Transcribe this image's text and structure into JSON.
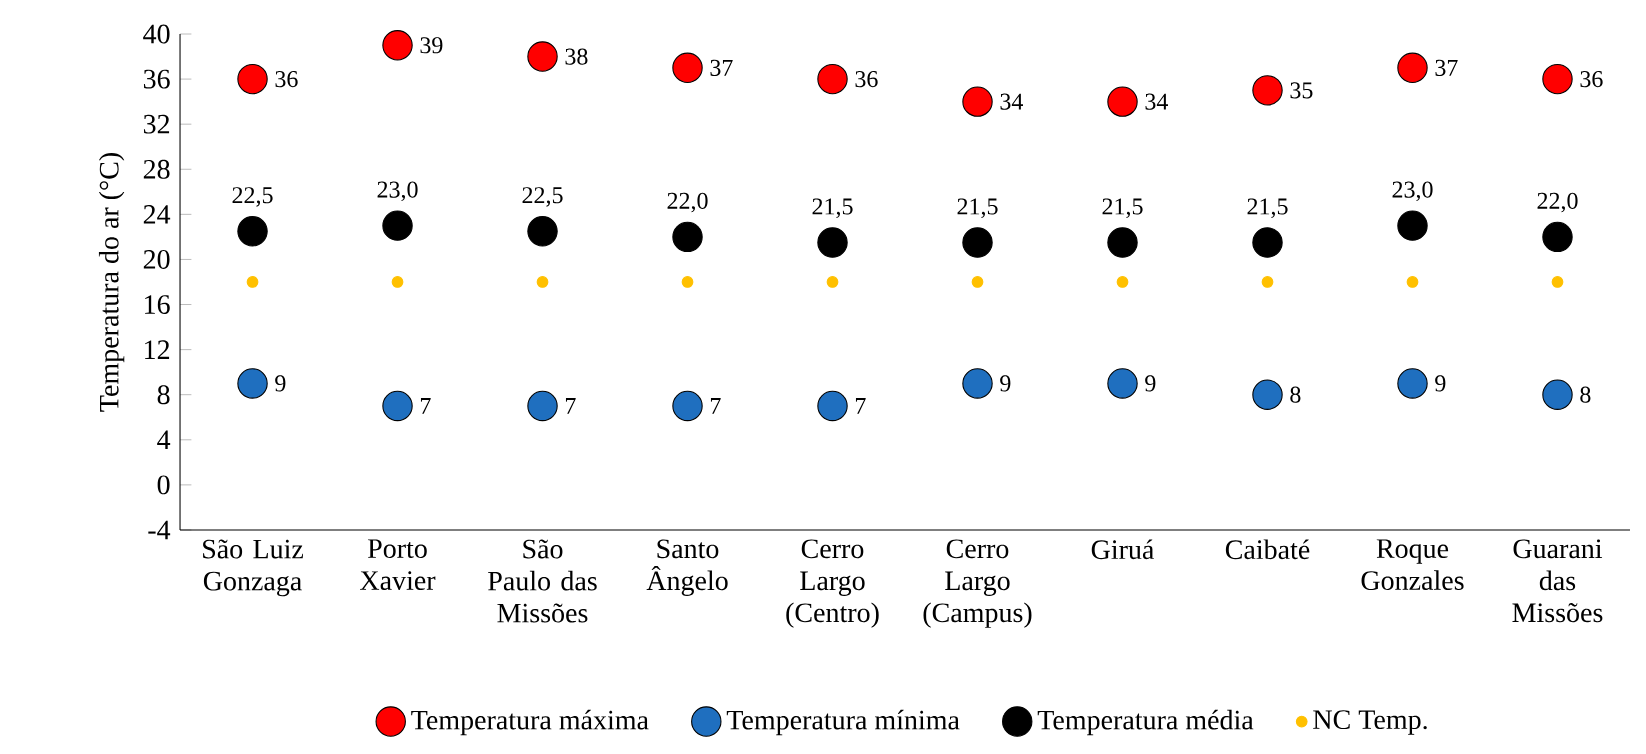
{
  "chart_data": {
    "type": "scatter",
    "ylabel": "Temperatura do ar (°C)",
    "categories": [
      "São Luiz Gonzaga",
      "Porto Xavier",
      "São Paulo das Missões",
      "Santo Ângelo",
      "Cerro Largo (Centro)",
      "Cerro Largo (Campus)",
      "Giruá",
      "Caibaté",
      "Roque Gonzales",
      "Guarani das Missões"
    ],
    "series": [
      {
        "name": "Temperatura máxima",
        "color": "#ff0000",
        "values": [
          36,
          39,
          38,
          37,
          36,
          34,
          34,
          35,
          37,
          36
        ],
        "value_labels": [
          "36",
          "39",
          "38",
          "37",
          "36",
          "34",
          "34",
          "35",
          "37",
          "36"
        ]
      },
      {
        "name": "Temperatura mínima",
        "color": "#1f6fbf",
        "values": [
          9,
          7,
          7,
          7,
          7,
          9,
          9,
          8,
          9,
          8
        ],
        "value_labels": [
          "9",
          "7",
          "7",
          "7",
          "7",
          "9",
          "9",
          "8",
          "9",
          "8"
        ]
      },
      {
        "name": "Temperatura média",
        "color": "#000000",
        "values": [
          22.5,
          23.0,
          22.5,
          22.0,
          21.5,
          21.5,
          21.5,
          21.5,
          23.0,
          22.0
        ],
        "value_labels": [
          "22,5",
          "23,0",
          "22,5",
          "22,0",
          "21,5",
          "21,5",
          "21,5",
          "21,5",
          "23,0",
          "22,0"
        ]
      },
      {
        "name": "NC Temp.",
        "color": "#ffc000",
        "values": [
          18,
          18,
          18,
          18,
          18,
          18,
          18,
          18,
          18,
          18
        ]
      }
    ],
    "ylim": [
      -4,
      40
    ],
    "yticks": [
      -4,
      0,
      4,
      8,
      12,
      16,
      20,
      24,
      28,
      32,
      36,
      40
    ],
    "marker": "circle",
    "legend": "bottom",
    "grid": false
  }
}
